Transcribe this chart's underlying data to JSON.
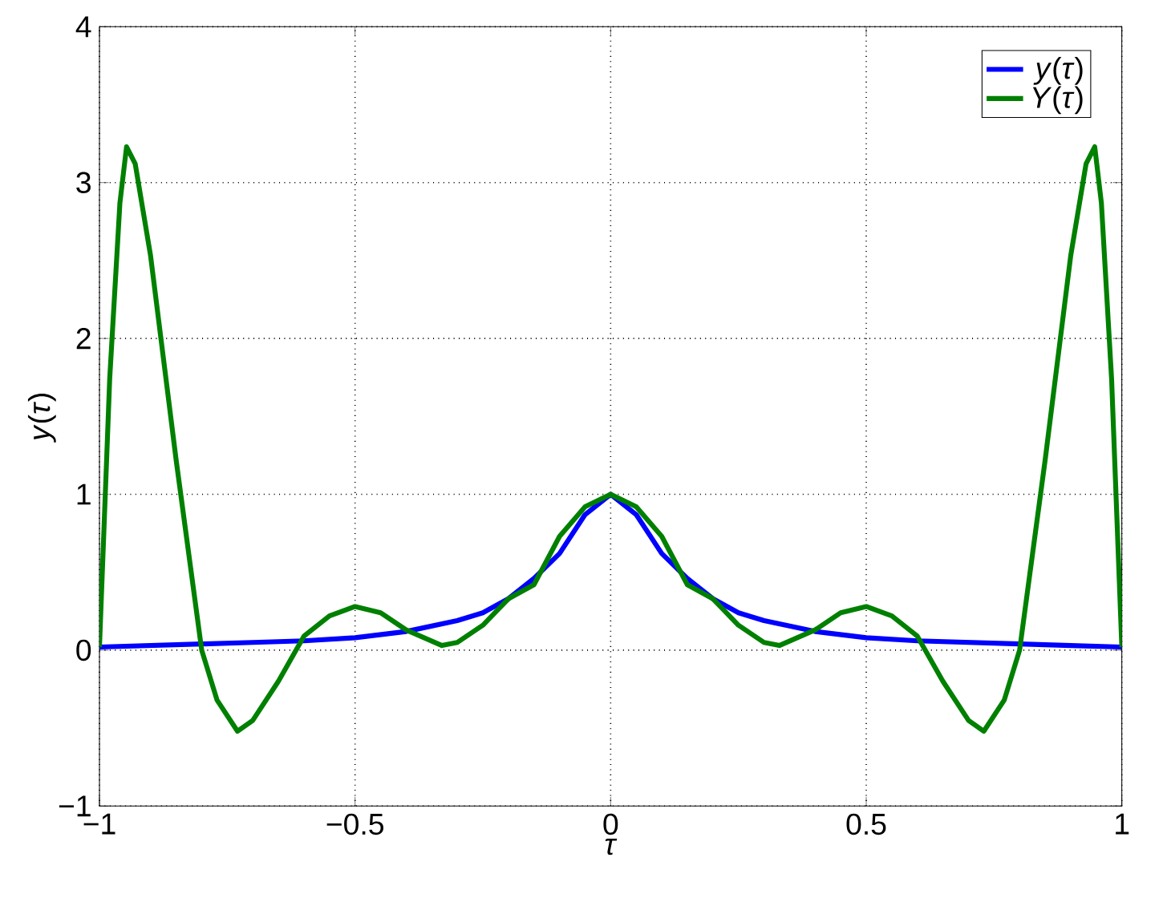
{
  "chart_data": {
    "type": "line",
    "xlabel": "*τ*",
    "ylabel": "*y*(*τ*)",
    "xlim": [
      -1,
      1
    ],
    "ylim": [
      -1,
      4
    ],
    "xticks": [
      {
        "value": -1,
        "label": "−1"
      },
      {
        "value": -0.5,
        "label": "−0.5"
      },
      0,
      0.5,
      1
    ],
    "yticks": [
      {
        "value": -1,
        "label": "−1"
      },
      0,
      1,
      2,
      3,
      4
    ],
    "grid": true,
    "legend": "top right",
    "line_style": "solid",
    "series": [
      {
        "name": "*y*(*τ*)",
        "color": "#0000ff",
        "x": [
          -1,
          -0.9,
          -0.8,
          -0.7,
          -0.6,
          -0.5,
          -0.4,
          -0.3,
          -0.25,
          -0.2,
          -0.15,
          -0.1,
          -0.05,
          0,
          0.05,
          0.1,
          0.15,
          0.2,
          0.25,
          0.3,
          0.4,
          0.5,
          0.6,
          0.7,
          0.8,
          0.9,
          1
        ],
        "values": [
          0.02,
          0.03,
          0.04,
          0.05,
          0.06,
          0.08,
          0.12,
          0.19,
          0.24,
          0.33,
          0.46,
          0.62,
          0.87,
          1,
          0.87,
          0.62,
          0.46,
          0.33,
          0.24,
          0.19,
          0.12,
          0.08,
          0.06,
          0.05,
          0.04,
          0.03,
          0.02
        ]
      },
      {
        "name": "*Y*(*τ*)",
        "color": "#008000",
        "x": [
          -1,
          -0.98,
          -0.96,
          -0.947,
          -0.93,
          -0.9,
          -0.85,
          -0.8,
          -0.77,
          -0.73,
          -0.7,
          -0.65,
          -0.6,
          -0.55,
          -0.5,
          -0.45,
          -0.4,
          -0.33,
          -0.3,
          -0.25,
          -0.2,
          -0.15,
          -0.1,
          -0.05,
          0,
          0.05,
          0.1,
          0.15,
          0.2,
          0.25,
          0.3,
          0.33,
          0.4,
          0.45,
          0.5,
          0.55,
          0.6,
          0.65,
          0.7,
          0.73,
          0.77,
          0.8,
          0.85,
          0.9,
          0.93,
          0.947,
          0.96,
          0.98,
          1
        ],
        "values": [
          0.02,
          1.74,
          2.87,
          3.23,
          3.12,
          2.53,
          1.22,
          0.0,
          -0.32,
          -0.52,
          -0.45,
          -0.2,
          0.09,
          0.22,
          0.28,
          0.24,
          0.13,
          0.03,
          0.05,
          0.16,
          0.33,
          0.42,
          0.73,
          0.92,
          1,
          0.92,
          0.73,
          0.42,
          0.33,
          0.16,
          0.05,
          0.03,
          0.13,
          0.24,
          0.28,
          0.22,
          0.09,
          -0.2,
          -0.45,
          -0.52,
          -0.32,
          0.0,
          1.22,
          2.53,
          3.12,
          3.23,
          2.87,
          1.74,
          0.02
        ]
      }
    ]
  }
}
